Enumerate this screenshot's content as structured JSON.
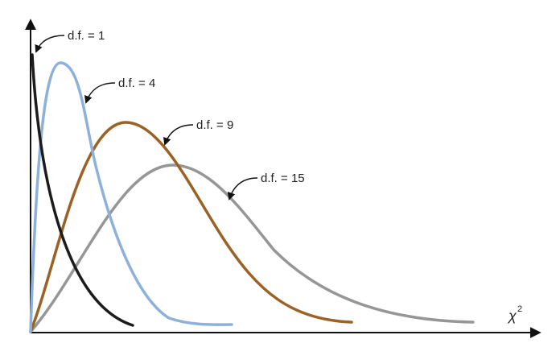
{
  "labels": [
    "d.f. = 1",
    "d.f. = 4",
    "d.f. = 9",
    "d.f. = 15"
  ],
  "axis_label": {
    "base": "χ",
    "superscript": "2"
  }
}
